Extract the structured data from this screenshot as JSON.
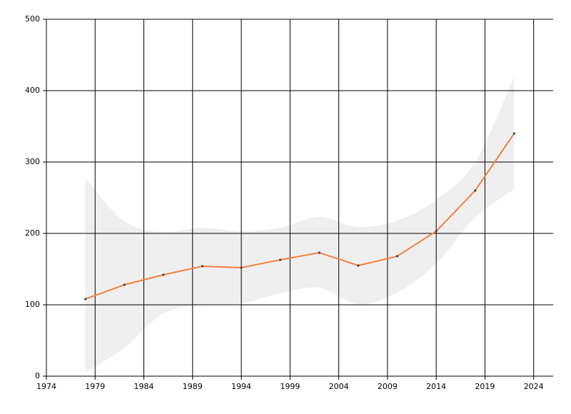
{
  "chart_data": {
    "type": "line",
    "x": [
      1978,
      1982,
      1986,
      1990,
      1994,
      1998,
      2002,
      2006,
      2010,
      2014,
      2018,
      2022
    ],
    "series": [
      {
        "color": "#f4813f",
        "values": [
          108,
          128,
          142,
          154,
          152,
          163,
          173,
          155,
          168,
          203,
          260,
          340
        ]
      }
    ],
    "band": {
      "color": "#efefef",
      "upper": [
        278,
        217,
        202,
        208,
        203,
        208,
        223,
        209,
        218,
        247,
        300,
        420
      ],
      "lower": [
        5,
        40,
        88,
        100,
        102,
        116,
        124,
        101,
        117,
        158,
        222,
        262
      ]
    },
    "xlim": [
      1974,
      2026
    ],
    "xticks": [
      1974,
      1979,
      1984,
      1989,
      1994,
      1999,
      2004,
      2009,
      2014,
      2019,
      2024
    ],
    "ylim": [
      0,
      500
    ],
    "yticks": [
      0,
      100,
      200,
      300,
      400,
      500
    ],
    "grid": true
  }
}
